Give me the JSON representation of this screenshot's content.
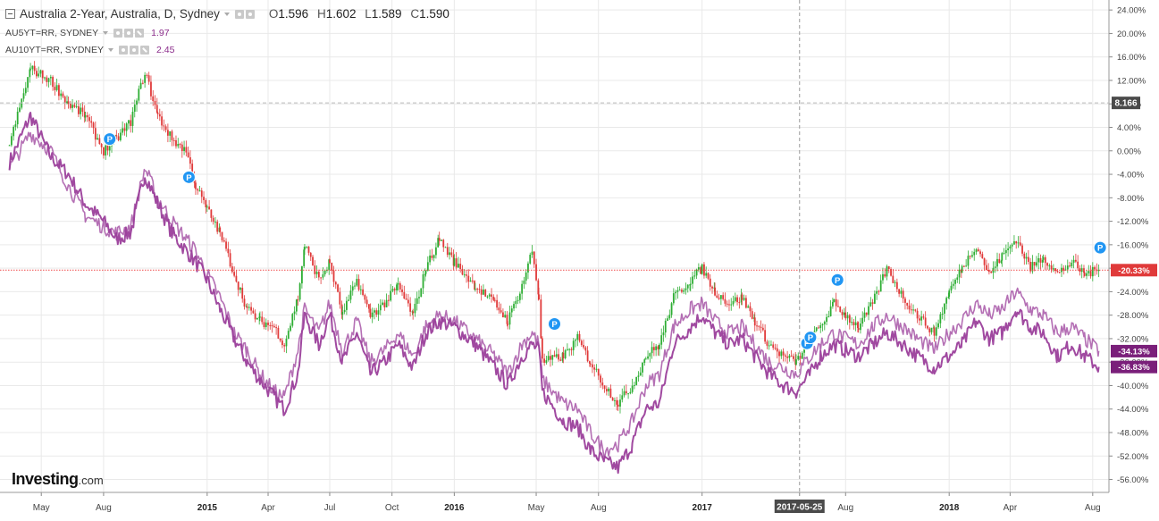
{
  "legend": {
    "main_title": "Australia 2-Year, Australia, D, Sydney",
    "o_label": "O",
    "o_val": "1.596",
    "h_label": "H",
    "h_val": "1.602",
    "l_label": "L",
    "l_val": "1.589",
    "c_label": "C",
    "c_val": "1.590",
    "s1_name": "AU5YT=RR, SYDNEY",
    "s1_val": "1.97",
    "s2_name": "AU10YT=RR, SYDNEY",
    "s2_val": "2.45"
  },
  "logo": {
    "brand": "Investing",
    "domain": ".com"
  },
  "colors": {
    "up": "#2eae34",
    "down": "#e03a3a",
    "series": "#9b3f9b",
    "grid": "#e9e9e9",
    "ref_line": "#ef4848",
    "axis_text": "#444444"
  },
  "chart_data": {
    "type": "line",
    "title": "Australia 2-Year, Australia, D, Sydney",
    "xlabel": "",
    "ylabel": "",
    "x_ticks": [
      "May",
      "Aug",
      "2015",
      "Apr",
      "Jul",
      "Oct",
      "2016",
      "May",
      "Aug",
      "2017",
      "2017-05-25",
      "Aug",
      "2018",
      "Apr",
      "Aug"
    ],
    "x_ticks_bold": [
      "2015",
      "2016",
      "2017",
      "2018"
    ],
    "y_ticks": [
      "24.00%",
      "20.00%",
      "16.00%",
      "12.00%",
      "8.00%",
      "4.00%",
      "0.00%",
      "-4.00%",
      "-8.00%",
      "-12.00%",
      "-16.00%",
      "-20.00%",
      "-24.00%",
      "-28.00%",
      "-32.00%",
      "-36.00%",
      "-40.00%",
      "-44.00%",
      "-48.00%",
      "-52.00%",
      "-56.00%"
    ],
    "ylim": [
      -58.2,
      25.7
    ],
    "grid": true,
    "crosshair": {
      "x_label": "2017-05-25",
      "y_label": "8.166",
      "y_value": 8.166
    },
    "price_line": {
      "value": -20.33
    },
    "end_labels": [
      {
        "text": "-20.33%",
        "value": -20.33,
        "color": "#e03a3a"
      },
      {
        "text": "-34.13%",
        "value": -34.13,
        "color": "#7a1f7a"
      },
      {
        "text": "-36.83%",
        "value": -36.83,
        "color": "#7a1f7a"
      }
    ],
    "markers": [
      {
        "date": "2014-08-10",
        "value": 2.0
      },
      {
        "date": "2014-12-05",
        "value": -4.5
      },
      {
        "date": "2016-05-28",
        "value": -29.5
      },
      {
        "date": "2017-06-05",
        "value": -32.8
      },
      {
        "date": "2017-06-10",
        "value": -31.8
      },
      {
        "date": "2017-07-20",
        "value": -22.0
      },
      {
        "date": "2018-08-12",
        "value": -16.5
      }
    ],
    "series": [
      {
        "name": "Australia 2-Year",
        "style": "candles",
        "points": [
          [
            "2014-03-15",
            1.0
          ],
          [
            "2014-04-15",
            14.0
          ],
          [
            "2014-05-15",
            12.0
          ],
          [
            "2014-06-10",
            8.0
          ],
          [
            "2014-07-05",
            6.0
          ],
          [
            "2014-08-01",
            0.0
          ],
          [
            "2014-08-20",
            2.0
          ],
          [
            "2014-09-10",
            5.0
          ],
          [
            "2014-10-01",
            13.5
          ],
          [
            "2014-10-20",
            6.0
          ],
          [
            "2014-11-10",
            2.0
          ],
          [
            "2014-12-01",
            0.0
          ],
          [
            "2014-12-15",
            -6.0
          ],
          [
            "2015-01-01",
            -10.0
          ],
          [
            "2015-01-20",
            -14.0
          ],
          [
            "2015-02-10",
            -21.0
          ],
          [
            "2015-03-01",
            -27.0
          ],
          [
            "2015-03-20",
            -29.0
          ],
          [
            "2015-04-10",
            -30.0
          ],
          [
            "2015-04-25",
            -33.0
          ],
          [
            "2015-05-15",
            -25.0
          ],
          [
            "2015-05-25",
            -16.0
          ],
          [
            "2015-06-15",
            -22.0
          ],
          [
            "2015-07-01",
            -19.0
          ],
          [
            "2015-07-20",
            -28.0
          ],
          [
            "2015-08-10",
            -22.0
          ],
          [
            "2015-08-30",
            -28.0
          ],
          [
            "2015-09-20",
            -26.0
          ],
          [
            "2015-10-10",
            -23.0
          ],
          [
            "2015-11-01",
            -28.0
          ],
          [
            "2015-11-20",
            -20.0
          ],
          [
            "2015-12-10",
            -15.0
          ],
          [
            "2016-01-01",
            -19.0
          ],
          [
            "2016-02-01",
            -23.0
          ],
          [
            "2016-03-01",
            -26.0
          ],
          [
            "2016-03-20",
            -29.0
          ],
          [
            "2016-04-10",
            -23.0
          ],
          [
            "2016-04-25",
            -17.0
          ],
          [
            "2016-05-05",
            -25.0
          ],
          [
            "2016-05-10",
            -36.0
          ],
          [
            "2016-06-10",
            -35.0
          ],
          [
            "2016-07-01",
            -32.0
          ],
          [
            "2016-07-20",
            -36.0
          ],
          [
            "2016-08-10",
            -40.0
          ],
          [
            "2016-08-30",
            -43.0
          ],
          [
            "2016-09-20",
            -40.0
          ],
          [
            "2016-10-10",
            -35.0
          ],
          [
            "2016-10-30",
            -33.0
          ],
          [
            "2016-11-20",
            -25.0
          ],
          [
            "2016-12-15",
            -22.0
          ],
          [
            "2017-01-01",
            -20.0
          ],
          [
            "2017-01-20",
            -24.0
          ],
          [
            "2017-02-10",
            -26.0
          ],
          [
            "2017-03-01",
            -25.0
          ],
          [
            "2017-03-20",
            -29.0
          ],
          [
            "2017-04-10",
            -33.0
          ],
          [
            "2017-05-01",
            -35.0
          ],
          [
            "2017-05-20",
            -36.0
          ],
          [
            "2017-06-10",
            -32.0
          ],
          [
            "2017-06-25",
            -30.0
          ],
          [
            "2017-07-15",
            -26.0
          ],
          [
            "2017-08-01",
            -28.0
          ],
          [
            "2017-08-20",
            -30.0
          ],
          [
            "2017-09-10",
            -26.0
          ],
          [
            "2017-10-01",
            -20.0
          ],
          [
            "2017-10-25",
            -25.0
          ],
          [
            "2017-11-15",
            -28.0
          ],
          [
            "2017-12-10",
            -31.0
          ],
          [
            "2018-01-01",
            -24.0
          ],
          [
            "2018-01-20",
            -20.0
          ],
          [
            "2018-02-10",
            -16.0
          ],
          [
            "2018-03-01",
            -21.0
          ],
          [
            "2018-03-20",
            -18.0
          ],
          [
            "2018-04-10",
            -15.0
          ],
          [
            "2018-05-01",
            -20.0
          ],
          [
            "2018-05-20",
            -18.0
          ],
          [
            "2018-06-10",
            -21.0
          ],
          [
            "2018-07-01",
            -19.0
          ],
          [
            "2018-07-20",
            -21.0
          ],
          [
            "2018-08-10",
            -20.3
          ]
        ]
      },
      {
        "name": "AU5YT=RR, SYDNEY",
        "style": "line",
        "points": [
          [
            "2014-03-15",
            -2.0
          ],
          [
            "2014-04-15",
            6.0
          ],
          [
            "2014-05-15",
            -1.0
          ],
          [
            "2014-06-10",
            -4.0
          ],
          [
            "2014-07-05",
            -9.0
          ],
          [
            "2014-08-01",
            -12.0
          ],
          [
            "2014-08-20",
            -15.0
          ],
          [
            "2014-09-10",
            -14.0
          ],
          [
            "2014-10-01",
            -4.0
          ],
          [
            "2014-10-20",
            -9.0
          ],
          [
            "2014-11-10",
            -14.0
          ],
          [
            "2014-12-01",
            -17.0
          ],
          [
            "2014-12-15",
            -19.0
          ],
          [
            "2015-01-01",
            -22.0
          ],
          [
            "2015-01-20",
            -27.0
          ],
          [
            "2015-02-10",
            -32.0
          ],
          [
            "2015-03-01",
            -36.0
          ],
          [
            "2015-03-20",
            -39.0
          ],
          [
            "2015-04-10",
            -42.0
          ],
          [
            "2015-04-25",
            -44.0
          ],
          [
            "2015-05-15",
            -38.0
          ],
          [
            "2015-05-25",
            -28.0
          ],
          [
            "2015-06-15",
            -33.0
          ],
          [
            "2015-07-01",
            -28.0
          ],
          [
            "2015-07-20",
            -36.0
          ],
          [
            "2015-08-10",
            -31.0
          ],
          [
            "2015-08-30",
            -38.0
          ],
          [
            "2015-09-20",
            -36.0
          ],
          [
            "2015-10-10",
            -33.0
          ],
          [
            "2015-11-01",
            -37.0
          ],
          [
            "2015-11-20",
            -31.0
          ],
          [
            "2015-12-10",
            -29.0
          ],
          [
            "2016-01-01",
            -30.0
          ],
          [
            "2016-02-01",
            -33.0
          ],
          [
            "2016-03-01",
            -37.0
          ],
          [
            "2016-03-20",
            -40.0
          ],
          [
            "2016-04-10",
            -35.0
          ],
          [
            "2016-04-25",
            -33.0
          ],
          [
            "2016-05-05",
            -34.0
          ],
          [
            "2016-05-10",
            -41.0
          ],
          [
            "2016-06-10",
            -46.0
          ],
          [
            "2016-07-01",
            -47.0
          ],
          [
            "2016-07-20",
            -51.0
          ],
          [
            "2016-08-10",
            -53.0
          ],
          [
            "2016-08-30",
            -54.0
          ],
          [
            "2016-09-20",
            -50.0
          ],
          [
            "2016-10-10",
            -44.0
          ],
          [
            "2016-10-30",
            -43.0
          ],
          [
            "2016-11-20",
            -33.0
          ],
          [
            "2016-12-15",
            -30.0
          ],
          [
            "2017-01-01",
            -28.0
          ],
          [
            "2017-01-20",
            -31.0
          ],
          [
            "2017-02-10",
            -33.0
          ],
          [
            "2017-03-01",
            -32.0
          ],
          [
            "2017-03-20",
            -35.0
          ],
          [
            "2017-04-10",
            -38.0
          ],
          [
            "2017-05-01",
            -40.0
          ],
          [
            "2017-05-20",
            -41.0
          ],
          [
            "2017-06-10",
            -38.0
          ],
          [
            "2017-06-25",
            -35.0
          ],
          [
            "2017-07-15",
            -33.0
          ],
          [
            "2017-08-01",
            -34.0
          ],
          [
            "2017-08-20",
            -35.0
          ],
          [
            "2017-09-10",
            -33.0
          ],
          [
            "2017-10-01",
            -31.0
          ],
          [
            "2017-10-25",
            -33.0
          ],
          [
            "2017-11-15",
            -35.0
          ],
          [
            "2017-12-10",
            -37.0
          ],
          [
            "2018-01-01",
            -35.0
          ],
          [
            "2018-01-20",
            -33.0
          ],
          [
            "2018-02-10",
            -29.0
          ],
          [
            "2018-03-01",
            -32.0
          ],
          [
            "2018-03-20",
            -31.0
          ],
          [
            "2018-04-10",
            -27.0
          ],
          [
            "2018-05-01",
            -30.0
          ],
          [
            "2018-05-20",
            -31.0
          ],
          [
            "2018-06-10",
            -35.0
          ],
          [
            "2018-07-01",
            -33.0
          ],
          [
            "2018-07-20",
            -35.0
          ],
          [
            "2018-08-10",
            -36.8
          ]
        ]
      },
      {
        "name": "AU10YT=RR, SYDNEY",
        "style": "line",
        "points": [
          [
            "2014-03-15",
            -3.0
          ],
          [
            "2014-04-15",
            3.0
          ],
          [
            "2014-05-15",
            0.0
          ],
          [
            "2014-06-10",
            -6.0
          ],
          [
            "2014-07-05",
            -11.0
          ],
          [
            "2014-08-01",
            -13.0
          ],
          [
            "2014-08-20",
            -14.0
          ],
          [
            "2014-09-10",
            -13.0
          ],
          [
            "2014-10-01",
            -3.0
          ],
          [
            "2014-10-20",
            -8.0
          ],
          [
            "2014-11-10",
            -12.0
          ],
          [
            "2014-12-01",
            -15.0
          ],
          [
            "2014-12-15",
            -17.0
          ],
          [
            "2015-01-01",
            -21.0
          ],
          [
            "2015-01-20",
            -25.0
          ],
          [
            "2015-02-10",
            -31.0
          ],
          [
            "2015-03-01",
            -34.0
          ],
          [
            "2015-03-20",
            -38.0
          ],
          [
            "2015-04-10",
            -41.0
          ],
          [
            "2015-04-25",
            -42.0
          ],
          [
            "2015-05-15",
            -34.0
          ],
          [
            "2015-05-25",
            -27.0
          ],
          [
            "2015-06-15",
            -31.0
          ],
          [
            "2015-07-01",
            -26.0
          ],
          [
            "2015-07-20",
            -34.0
          ],
          [
            "2015-08-10",
            -29.0
          ],
          [
            "2015-08-30",
            -36.0
          ],
          [
            "2015-09-20",
            -34.0
          ],
          [
            "2015-10-10",
            -31.0
          ],
          [
            "2015-11-01",
            -35.0
          ],
          [
            "2015-11-20",
            -30.0
          ],
          [
            "2015-12-10",
            -28.0
          ],
          [
            "2016-01-01",
            -29.0
          ],
          [
            "2016-02-01",
            -32.0
          ],
          [
            "2016-03-01",
            -35.0
          ],
          [
            "2016-03-20",
            -38.0
          ],
          [
            "2016-04-10",
            -33.0
          ],
          [
            "2016-04-25",
            -31.0
          ],
          [
            "2016-05-05",
            -33.0
          ],
          [
            "2016-05-10",
            -39.0
          ],
          [
            "2016-06-10",
            -43.0
          ],
          [
            "2016-07-01",
            -44.0
          ],
          [
            "2016-07-20",
            -48.0
          ],
          [
            "2016-08-10",
            -51.0
          ],
          [
            "2016-08-30",
            -50.0
          ],
          [
            "2016-09-20",
            -46.0
          ],
          [
            "2016-10-10",
            -40.0
          ],
          [
            "2016-10-30",
            -38.0
          ],
          [
            "2016-11-20",
            -30.0
          ],
          [
            "2016-12-15",
            -27.0
          ],
          [
            "2017-01-01",
            -26.0
          ],
          [
            "2017-01-20",
            -29.0
          ],
          [
            "2017-02-10",
            -31.0
          ],
          [
            "2017-03-01",
            -30.0
          ],
          [
            "2017-03-20",
            -33.0
          ],
          [
            "2017-04-10",
            -36.0
          ],
          [
            "2017-05-01",
            -37.0
          ],
          [
            "2017-05-20",
            -38.0
          ],
          [
            "2017-06-10",
            -35.0
          ],
          [
            "2017-06-25",
            -33.0
          ],
          [
            "2017-07-15",
            -31.0
          ],
          [
            "2017-08-01",
            -32.0
          ],
          [
            "2017-08-20",
            -33.0
          ],
          [
            "2017-09-10",
            -30.0
          ],
          [
            "2017-10-01",
            -28.0
          ],
          [
            "2017-10-25",
            -30.0
          ],
          [
            "2017-11-15",
            -32.0
          ],
          [
            "2017-12-10",
            -34.0
          ],
          [
            "2018-01-01",
            -31.0
          ],
          [
            "2018-01-20",
            -29.0
          ],
          [
            "2018-02-10",
            -26.0
          ],
          [
            "2018-03-01",
            -28.0
          ],
          [
            "2018-03-20",
            -27.0
          ],
          [
            "2018-04-10",
            -24.0
          ],
          [
            "2018-05-01",
            -27.0
          ],
          [
            "2018-05-20",
            -28.0
          ],
          [
            "2018-06-10",
            -31.0
          ],
          [
            "2018-07-01",
            -30.0
          ],
          [
            "2018-07-20",
            -32.0
          ],
          [
            "2018-08-10",
            -34.1
          ]
        ]
      }
    ]
  }
}
